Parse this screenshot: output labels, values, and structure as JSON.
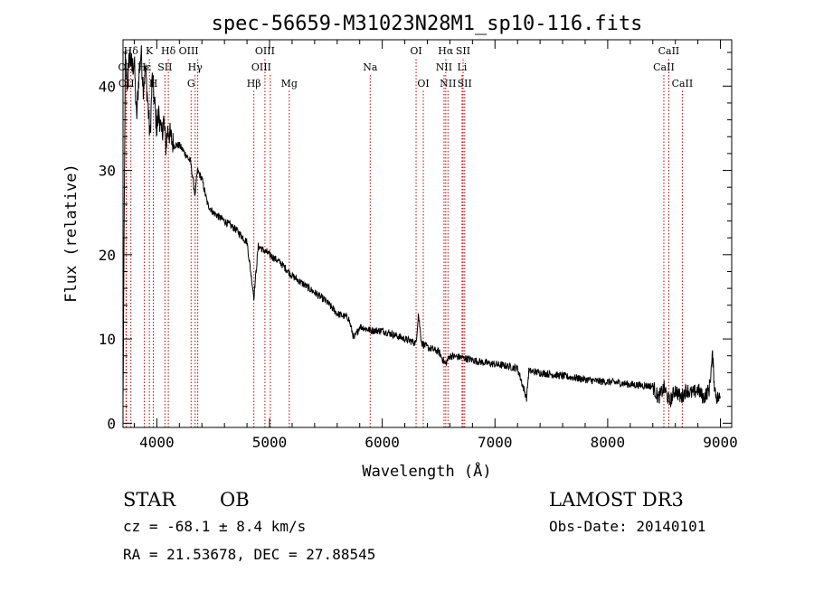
{
  "chart_data": {
    "type": "line",
    "title": "spec-56659-M31023N28M1_sp10-116.fits",
    "xlabel": "Wavelength (Å)",
    "ylabel": "Flux (relative)",
    "xlim": [
      3700,
      9100
    ],
    "ylim": [
      -0.5,
      45.5
    ],
    "xticks": [
      4000,
      5000,
      6000,
      7000,
      8000,
      9000
    ],
    "yticks": [
      0,
      10,
      20,
      30,
      40
    ],
    "grid": false,
    "series": [
      {
        "name": "flux",
        "x": [
          3700,
          3720,
          3740,
          3760,
          3780,
          3800,
          3820,
          3840,
          3860,
          3880,
          3900,
          3920,
          3940,
          3960,
          3980,
          4000,
          4020,
          4040,
          4060,
          4080,
          4100,
          4120,
          4150,
          4200,
          4250,
          4300,
          4340,
          4360,
          4400,
          4450,
          4500,
          4600,
          4700,
          4800,
          4861,
          4900,
          5000,
          5100,
          5200,
          5300,
          5400,
          5500,
          5600,
          5700,
          5750,
          5800,
          5900,
          6000,
          6100,
          6200,
          6300,
          6320,
          6350,
          6400,
          6500,
          6560,
          6600,
          6700,
          6800,
          6900,
          7000,
          7100,
          7200,
          7280,
          7300,
          7400,
          7500,
          7600,
          7700,
          7800,
          7900,
          8000,
          8100,
          8200,
          8300,
          8400,
          8450,
          8500,
          8550,
          8600,
          8650,
          8700,
          8750,
          8800,
          8850,
          8900,
          8930,
          8950,
          8970,
          9000
        ],
        "y": [
          2,
          43,
          40,
          44,
          42,
          43,
          36,
          41,
          44,
          40,
          42,
          38,
          34,
          41,
          38,
          35,
          37,
          34,
          36,
          33,
          35,
          34,
          33,
          33,
          32,
          31,
          27,
          30,
          29,
          26,
          25,
          24,
          23,
          21.5,
          15,
          21,
          20,
          19,
          17.5,
          16.5,
          15.5,
          14.5,
          13,
          12.5,
          10,
          11.5,
          11,
          11,
          10.5,
          10,
          9.5,
          13,
          9.5,
          9,
          8.5,
          7,
          8,
          7.8,
          7.5,
          7.2,
          7,
          6.8,
          6.5,
          3,
          6.2,
          6,
          5.8,
          5.6,
          5.4,
          5.2,
          5,
          4.9,
          4.8,
          4.6,
          4.5,
          4.4,
          3,
          4.2,
          2.5,
          4,
          3,
          4,
          3.5,
          4,
          3,
          4,
          8,
          4,
          3,
          3
        ]
      }
    ],
    "lines": [
      {
        "name": "Hδ(top)",
        "x": 3770,
        "row": 0,
        "label": "Hδ",
        "dx": 0
      },
      {
        "name": "K",
        "x": 3934,
        "row": 0,
        "label": "K",
        "dx": 0
      },
      {
        "name": "Hδ",
        "x": 4102,
        "row": 0,
        "label": "Hδ",
        "dx": 0
      },
      {
        "name": "OIII-a",
        "x": 4363,
        "row": 0,
        "label": "OIII",
        "dx": -10
      },
      {
        "name": "OIII-b",
        "x": 4959,
        "row": 0,
        "label": "OIII",
        "dx": 0
      },
      {
        "name": "OI-a",
        "x": 6300,
        "row": 0,
        "label": "OI",
        "dx": 0
      },
      {
        "name": "Hα",
        "x": 6563,
        "row": 0,
        "label": "Hα",
        "dx": 0
      },
      {
        "name": "SII-a",
        "x": 6717,
        "row": 0,
        "label": "SII",
        "dx": 0
      },
      {
        "name": "CaII-a",
        "x": 8542,
        "row": 0,
        "label": "CaII",
        "dx": 0
      },
      {
        "name": "OII",
        "x": 3727,
        "row": 1,
        "label": "OII",
        "dx": 0
      },
      {
        "name": "Hε",
        "x": 3889,
        "row": 1,
        "label": "Hε",
        "dx": 0
      },
      {
        "name": "SII-b",
        "x": 4072,
        "row": 1,
        "label": "SII",
        "dx": 0
      },
      {
        "name": "Hγ",
        "x": 4340,
        "row": 1,
        "label": "Hγ",
        "dx": 0
      },
      {
        "name": "OIII-c",
        "x": 5007,
        "row": 1,
        "label": "OIII",
        "dx": -10
      },
      {
        "name": "Na",
        "x": 5893,
        "row": 1,
        "label": "Na",
        "dx": 0
      },
      {
        "name": "NII-a",
        "x": 6548,
        "row": 1,
        "label": "NII",
        "dx": 0
      },
      {
        "name": "Li",
        "x": 6708,
        "row": 1,
        "label": "Li",
        "dx": 0
      },
      {
        "name": "CaII-b",
        "x": 8498,
        "row": 1,
        "label": "CaII",
        "dx": 0
      },
      {
        "name": "OII-low",
        "x": 3730,
        "row": 2,
        "label": "OII",
        "dx": 0
      },
      {
        "name": "H",
        "x": 3969,
        "row": 2,
        "label": "H",
        "dx": 0
      },
      {
        "name": "G",
        "x": 4304,
        "row": 2,
        "label": "G",
        "dx": 0
      },
      {
        "name": "Hβ",
        "x": 4861,
        "row": 2,
        "label": "Hβ",
        "dx": 0
      },
      {
        "name": "Mg",
        "x": 5175,
        "row": 2,
        "label": "Mg",
        "dx": 0
      },
      {
        "name": "OI-b",
        "x": 6364,
        "row": 2,
        "label": "OI",
        "dx": 0
      },
      {
        "name": "NII-b",
        "x": 6583,
        "row": 2,
        "label": "NII",
        "dx": 0
      },
      {
        "name": "SII-c",
        "x": 6731,
        "row": 2,
        "label": "SII",
        "dx": 0
      },
      {
        "name": "CaII-c",
        "x": 8662,
        "row": 2,
        "label": "CaII",
        "dx": 0
      }
    ]
  },
  "info": {
    "class_label": "STAR",
    "subclass": "OB",
    "survey": "LAMOST DR3",
    "cz": "cz = -68.1 ± 8.4 km/s",
    "obs_date": "Obs-Date: 20140101",
    "coords": "RA =  21.53678, DEC =  27.88545"
  }
}
